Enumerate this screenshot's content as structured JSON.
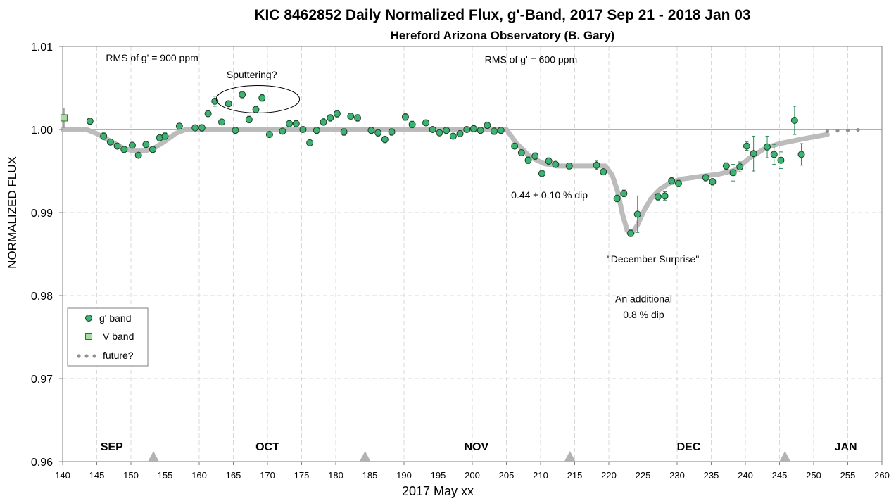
{
  "chart_data": {
    "type": "scatter",
    "title": "KIC 8462852 Daily  Normalized Flux, g'-Band, 2017 Sep 21 - 2018 Jan 03",
    "subtitle": "Hereford Arizona Observatory (B. Gary)",
    "xlabel": "2017 May xx",
    "ylabel": "NORMALIZED FLUX",
    "xlim": [
      140,
      260
    ],
    "ylim": [
      0.96,
      1.01
    ],
    "xticks": [
      140,
      145,
      150,
      155,
      160,
      165,
      170,
      175,
      180,
      185,
      190,
      195,
      200,
      205,
      210,
      215,
      220,
      225,
      230,
      235,
      240,
      245,
      250,
      255,
      260
    ],
    "yticks": [
      0.96,
      0.97,
      0.98,
      0.99,
      1.0,
      1.01
    ],
    "ytick_labels": [
      "0.96",
      "0.97",
      "0.98",
      "0.99",
      "1.00",
      "1.01"
    ],
    "grid": true,
    "legend_position": "lower-left",
    "colors": {
      "g_band": "#3cb371",
      "v_band": "#a8dca0",
      "model": "#b8b8b8",
      "future": "#909090",
      "reference": "#7f7f7f"
    },
    "reference_line": 1.0,
    "series": [
      {
        "name": "g' band",
        "points": [
          [
            144.0,
            1.001,
            0.0004
          ],
          [
            146.0,
            0.9992,
            0.0004
          ],
          [
            147.0,
            0.9985,
            0.0003
          ],
          [
            148.0,
            0.998,
            0.0003
          ],
          [
            149.0,
            0.9976,
            0.0003
          ],
          [
            150.2,
            0.9981,
            0.0003
          ],
          [
            151.1,
            0.9969,
            0.0003
          ],
          [
            152.2,
            0.9982,
            0.0003
          ],
          [
            153.2,
            0.9976,
            0.0004
          ],
          [
            154.2,
            0.999,
            0.0004
          ],
          [
            155.0,
            0.9992,
            0.0004
          ],
          [
            157.1,
            1.0004,
            0.0003
          ],
          [
            159.4,
            1.0002,
            0.0003
          ],
          [
            160.4,
            1.0002,
            0.0004
          ],
          [
            161.3,
            1.0019,
            0.0003
          ],
          [
            162.3,
            1.0034,
            0.0006
          ],
          [
            163.3,
            1.0009,
            0.0003
          ],
          [
            164.3,
            1.0031,
            0.0003
          ],
          [
            165.3,
            0.9999,
            0.0003
          ],
          [
            166.3,
            1.0042,
            0.0004
          ],
          [
            167.3,
            1.0012,
            0.0004
          ],
          [
            168.3,
            1.0024,
            0.0004
          ],
          [
            169.2,
            1.0038,
            0.0004
          ],
          [
            170.3,
            0.9994,
            0.0003
          ],
          [
            172.2,
            0.9998,
            0.0003
          ],
          [
            173.2,
            1.0007,
            0.0004
          ],
          [
            174.2,
            1.0007,
            0.0004
          ],
          [
            175.2,
            1.0,
            0.0003
          ],
          [
            176.2,
            0.9984,
            0.0003
          ],
          [
            177.2,
            0.9999,
            0.0004
          ],
          [
            178.2,
            1.0009,
            0.0004
          ],
          [
            179.2,
            1.0014,
            0.0004
          ],
          [
            180.2,
            1.0019,
            0.0004
          ],
          [
            181.2,
            0.9997,
            0.0004
          ],
          [
            182.2,
            1.0016,
            0.0003
          ],
          [
            183.2,
            1.0014,
            0.0004
          ],
          [
            185.2,
            0.9999,
            0.0004
          ],
          [
            186.2,
            0.9996,
            0.0004
          ],
          [
            187.2,
            0.9988,
            0.0004
          ],
          [
            188.2,
            0.9997,
            0.0004
          ],
          [
            190.2,
            1.0015,
            0.0004
          ],
          [
            191.2,
            1.0006,
            0.0004
          ],
          [
            193.2,
            1.0008,
            0.0003
          ],
          [
            194.2,
            1.0,
            0.0003
          ],
          [
            195.2,
            0.9996,
            0.0003
          ],
          [
            196.2,
            0.9999,
            0.0004
          ],
          [
            197.2,
            0.9992,
            0.0003
          ],
          [
            198.2,
            0.9995,
            0.0003
          ],
          [
            199.2,
            1.0,
            0.0003
          ],
          [
            200.2,
            1.0001,
            0.0004
          ],
          [
            201.2,
            0.9999,
            0.0003
          ],
          [
            202.2,
            1.0005,
            0.0004
          ],
          [
            203.2,
            0.9998,
            0.0004
          ],
          [
            204.2,
            0.9999,
            0.0003
          ],
          [
            206.2,
            0.998,
            0.0003
          ],
          [
            207.2,
            0.9972,
            0.0003
          ],
          [
            208.2,
            0.9963,
            0.0004
          ],
          [
            209.2,
            0.9968,
            0.0004
          ],
          [
            210.2,
            0.9947,
            0.0004
          ],
          [
            211.2,
            0.9962,
            0.0004
          ],
          [
            212.2,
            0.9958,
            0.0003
          ],
          [
            214.2,
            0.9956,
            0.0003
          ],
          [
            218.2,
            0.9957,
            0.0005
          ],
          [
            219.2,
            0.9949,
            0.0003
          ],
          [
            221.2,
            0.9917,
            0.0004
          ],
          [
            222.2,
            0.9923,
            0.0004
          ],
          [
            223.2,
            0.9875,
            0.0004
          ],
          [
            224.2,
            0.9898,
            0.0022
          ],
          [
            227.2,
            0.9919,
            0.0004
          ],
          [
            228.2,
            0.992,
            0.0005
          ],
          [
            229.2,
            0.9938,
            0.0004
          ],
          [
            230.2,
            0.9935,
            0.0004
          ],
          [
            234.2,
            0.9942,
            0.0004
          ],
          [
            235.2,
            0.9937,
            0.0004
          ],
          [
            237.2,
            0.9956,
            0.0004
          ],
          [
            238.2,
            0.9948,
            0.001
          ],
          [
            239.2,
            0.9955,
            0.0006
          ],
          [
            240.2,
            0.998,
            0.0005
          ],
          [
            241.2,
            0.9971,
            0.0021
          ],
          [
            243.2,
            0.9979,
            0.0013
          ],
          [
            244.2,
            0.997,
            0.0012
          ],
          [
            245.2,
            0.9963,
            0.001
          ],
          [
            247.2,
            1.0011,
            0.0017
          ],
          [
            248.2,
            0.997,
            0.0013
          ]
        ]
      },
      {
        "name": "V band",
        "points": [
          [
            140.2,
            1.0014,
            0.0012
          ]
        ]
      }
    ],
    "model_curve": [
      [
        140,
        1.0
      ],
      [
        143.5,
        1.0
      ],
      [
        145,
        0.9995
      ],
      [
        147,
        0.9986
      ],
      [
        149,
        0.9977
      ],
      [
        150.5,
        0.9974
      ],
      [
        152,
        0.9974
      ],
      [
        153.5,
        0.9978
      ],
      [
        155,
        0.9986
      ],
      [
        156.5,
        0.9995
      ],
      [
        158,
        1.0
      ],
      [
        205,
        1.0
      ],
      [
        206.5,
        0.9983
      ],
      [
        208.5,
        0.9967
      ],
      [
        210.5,
        0.9959
      ],
      [
        212.5,
        0.9956
      ],
      [
        219.5,
        0.9956
      ],
      [
        220.5,
        0.9945
      ],
      [
        221.3,
        0.9925
      ],
      [
        222,
        0.9898
      ],
      [
        222.7,
        0.9878
      ],
      [
        223.4,
        0.9875
      ],
      [
        224.2,
        0.9885
      ],
      [
        225.2,
        0.9903
      ],
      [
        226.2,
        0.9917
      ],
      [
        227.5,
        0.9928
      ],
      [
        229,
        0.9936
      ],
      [
        230.5,
        0.994
      ],
      [
        233,
        0.9943
      ],
      [
        236,
        0.9946
      ],
      [
        238.5,
        0.9951
      ],
      [
        240.5,
        0.9965
      ],
      [
        243,
        0.9978
      ],
      [
        245,
        0.9983
      ],
      [
        248,
        0.9988
      ],
      [
        252,
        0.9994
      ]
    ],
    "future_points": [
      252,
      253.5,
      255,
      256.5
    ],
    "future_level": 0.9998,
    "month_markers": [
      153.3,
      184.3,
      214.3,
      245.8
    ],
    "month_labels": [
      {
        "label": "SEP",
        "x": 147.2,
        "bold": true
      },
      {
        "label": "OCT",
        "x": 170.0,
        "bold": true
      },
      {
        "label": "NOV",
        "x": 200.6,
        "bold": true
      },
      {
        "label": "DEC",
        "x": 231.7,
        "bold": true
      },
      {
        "label": "JAN",
        "x": 254.7,
        "bold": true
      }
    ],
    "annotations": [
      {
        "id": "rms-left",
        "text": "RMS of g' = 900 ppm",
        "x": 153.1,
        "y": 1.0082
      },
      {
        "id": "sputtering",
        "text": "Sputtering?",
        "x": 167.7,
        "y": 1.0062
      },
      {
        "id": "rms-right",
        "text": "RMS of g' = 600 ppm",
        "x": 208.6,
        "y": 1.008
      },
      {
        "id": "dip-1",
        "text": "0.44 ± 0.10 % dip",
        "x": 211.3,
        "y": 0.9917
      },
      {
        "id": "december-surprise",
        "text": "\"December Surprise\"",
        "x": 226.5,
        "y": 0.984
      },
      {
        "id": "additional-1",
        "text": "An additional",
        "x": 225.1,
        "y": 0.9792
      },
      {
        "id": "additional-2",
        "text": "0.8 % dip",
        "x": 225.1,
        "y": 0.9773
      }
    ],
    "ellipse": {
      "cx": 168.6,
      "cy": 1.00365,
      "rx": 6.1,
      "ry": 0.00165
    },
    "legend": [
      "g' band",
      "V band",
      "future?"
    ]
  }
}
